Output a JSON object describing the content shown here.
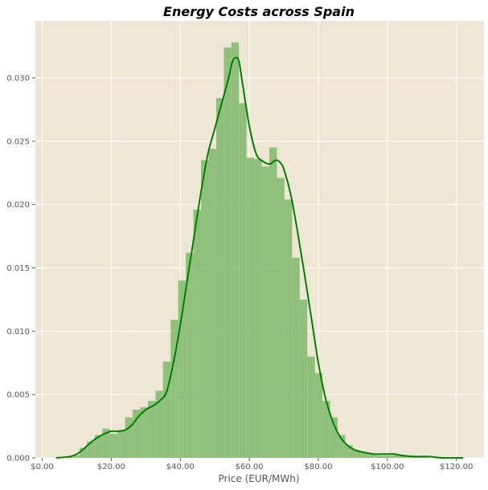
{
  "chart_data": {
    "type": "histogram",
    "title": "Energy Costs across Spain",
    "xlabel": "Price (EUR/MWh)",
    "ylabel": "",
    "xlim": [
      -2,
      128
    ],
    "ylim": [
      0,
      0.0345
    ],
    "x_ticks": [
      0,
      20,
      40,
      60,
      80,
      100,
      120
    ],
    "x_tick_labels": [
      "$0.00",
      "$20.00",
      "$40.00",
      "$60.00",
      "$80.00",
      "$100.00",
      "$120.00"
    ],
    "y_ticks": [
      0,
      0.005,
      0.01,
      0.015,
      0.02,
      0.025,
      0.03
    ],
    "y_tick_labels": [
      "0.000",
      "0.005",
      "0.010",
      "0.015",
      "0.020",
      "0.025",
      "0.030"
    ],
    "grid": true,
    "bins": {
      "edges": [
        2,
        4.2,
        6.4,
        8.6,
        10.8,
        13,
        15.2,
        17.4,
        19.6,
        21.8,
        24,
        26.2,
        28.4,
        30.6,
        32.8,
        35,
        37.2,
        39.4,
        41.6,
        43.8,
        46,
        48.2,
        50.4,
        52.6,
        54.8,
        57,
        59.2,
        61.4,
        63.6,
        65.8,
        68,
        70.2,
        72.4,
        74.6,
        76.8,
        79,
        81.2,
        83.4,
        85.6,
        87.8,
        90,
        92.2,
        94.4,
        96.6,
        98.8,
        101,
        103.2,
        105.4,
        107.6,
        109.8,
        112,
        114.2,
        116.4,
        118.6,
        120.8,
        123
      ],
      "values": [
        0.0,
        0.0,
        0.0001,
        0.0002,
        0.0008,
        0.0013,
        0.0018,
        0.0023,
        0.0019,
        0.0022,
        0.0032,
        0.0038,
        0.004,
        0.0045,
        0.0053,
        0.0076,
        0.0109,
        0.014,
        0.0162,
        0.0196,
        0.0235,
        0.0244,
        0.0284,
        0.0324,
        0.0328,
        0.028,
        0.0237,
        0.0236,
        0.023,
        0.0245,
        0.0221,
        0.0204,
        0.0158,
        0.0125,
        0.008,
        0.0067,
        0.0045,
        0.0032,
        0.0018,
        0.001,
        0.0006,
        0.0004,
        0.0003,
        0.0002,
        0.0002,
        0.0002,
        0.0002,
        0.0001,
        0.0001,
        0.0001,
        0.0,
        0.0,
        0.0,
        0.0,
        0.0
      ],
      "color": "#7fb96b"
    },
    "kde": {
      "x": [
        4,
        8,
        10,
        12,
        14,
        16,
        18,
        20,
        22,
        24,
        26,
        28,
        30,
        32,
        34,
        36,
        38,
        40,
        42,
        44,
        46,
        48,
        50,
        52,
        54,
        55,
        56,
        57,
        58,
        60,
        62,
        64,
        66,
        67,
        68,
        69,
        70,
        72,
        74,
        76,
        78,
        80,
        82,
        84,
        86,
        88,
        90,
        92,
        94,
        96,
        98,
        100,
        102,
        104,
        108,
        112,
        116,
        122
      ],
      "y": [
        0,
        0.0001,
        0.0003,
        0.0007,
        0.0012,
        0.0016,
        0.0019,
        0.0021,
        0.0021,
        0.0022,
        0.0026,
        0.0033,
        0.0038,
        0.0041,
        0.0045,
        0.0052,
        0.0075,
        0.0105,
        0.014,
        0.0175,
        0.021,
        0.024,
        0.026,
        0.028,
        0.03,
        0.0312,
        0.0316,
        0.0313,
        0.0296,
        0.0262,
        0.024,
        0.0234,
        0.0232,
        0.0234,
        0.0235,
        0.0233,
        0.0228,
        0.0208,
        0.0178,
        0.0145,
        0.011,
        0.0075,
        0.0048,
        0.003,
        0.0018,
        0.0011,
        0.0007,
        0.0005,
        0.0004,
        0.0003,
        0.0003,
        0.0003,
        0.0003,
        0.0002,
        0.0001,
        0.0001,
        0.0,
        0.0
      ],
      "color": "#008000"
    },
    "background_color": "#efe7d6",
    "grid_color": "#ffffff"
  }
}
